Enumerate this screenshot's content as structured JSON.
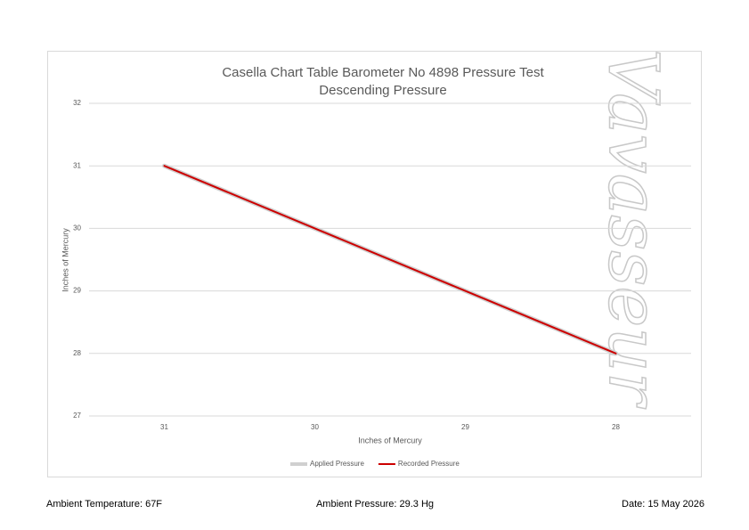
{
  "chart_data": {
    "type": "line",
    "title": "Casella Chart Table Barometer No 4898 Pressure Test",
    "subtitle": "Descending Pressure",
    "watermark": "Vavasseur",
    "x_label": "Inches of Mercury",
    "y_label": "Inches of Mercury",
    "categories": [
      "31",
      "30",
      "29",
      "28"
    ],
    "series": [
      {
        "name": "Applied Pressure",
        "color": "#d0d0d0",
        "values": [
          31,
          30,
          29,
          28
        ]
      },
      {
        "name": "Recorded Pressure",
        "color": "#cc0000",
        "values": [
          31,
          30,
          29,
          28
        ]
      }
    ],
    "ylim": [
      27,
      32
    ],
    "yticks": [
      27,
      28,
      29,
      30,
      31,
      32
    ],
    "grid": true,
    "legend": "bottom"
  },
  "footer": {
    "temperature": "Ambient Temperature: 67F",
    "pressure": "Ambient Pressure: 29.3 Hg",
    "date": "Date: 15 May 2026"
  }
}
